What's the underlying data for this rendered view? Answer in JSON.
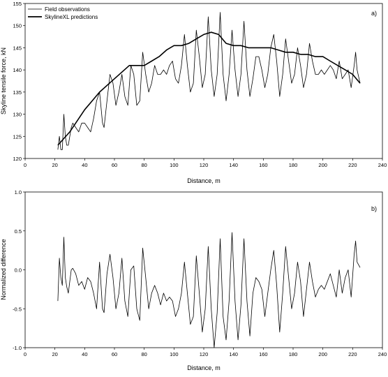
{
  "chart_data": [
    {
      "type": "line",
      "panel_label": "a)",
      "xlabel": "Distance, m",
      "ylabel": "Skyline tensile force, kN",
      "xlim": [
        0,
        240
      ],
      "ylim": [
        120,
        155
      ],
      "xticks": [
        0,
        20,
        40,
        60,
        80,
        100,
        120,
        140,
        160,
        180,
        200,
        220,
        240
      ],
      "yticks": [
        120,
        125,
        130,
        135,
        140,
        145,
        150,
        155
      ],
      "grid": false,
      "legend_position": "top-left",
      "series": [
        {
          "name": "Field observations",
          "style": "thin",
          "x": [
            22,
            23,
            24,
            25,
            26,
            27,
            28,
            29,
            30,
            31,
            32,
            34,
            36,
            38,
            40,
            42,
            44,
            46,
            48,
            50,
            52,
            53,
            55,
            57,
            59,
            61,
            63,
            65,
            67,
            69,
            71,
            73,
            75,
            77,
            79,
            81,
            83,
            85,
            87,
            89,
            91,
            93,
            95,
            97,
            99,
            101,
            103,
            105,
            107,
            109,
            111,
            113,
            115,
            117,
            119,
            121,
            123,
            125,
            127,
            129,
            131,
            133,
            135,
            137,
            139,
            141,
            143,
            145,
            147,
            149,
            151,
            153,
            155,
            157,
            159,
            161,
            163,
            165,
            167,
            169,
            171,
            173,
            175,
            177,
            179,
            181,
            183,
            185,
            187,
            189,
            191,
            193,
            195,
            197,
            199,
            201,
            203,
            205,
            207,
            209,
            211,
            213,
            215,
            217,
            219,
            221,
            222,
            223,
            225
          ],
          "y": [
            122,
            125,
            122,
            122,
            130,
            125,
            123,
            123,
            125,
            127,
            128,
            127,
            126,
            128,
            128,
            127,
            126,
            129,
            133,
            135,
            128,
            127,
            133,
            139,
            137,
            132,
            135,
            139,
            134,
            132,
            141,
            139,
            132,
            133,
            144,
            139,
            135,
            137,
            141,
            139,
            139,
            140,
            139,
            141,
            142,
            138,
            137,
            141,
            148,
            141,
            135,
            137,
            149,
            143,
            136,
            139,
            152,
            140,
            134,
            139,
            153,
            139,
            133,
            139,
            149,
            140,
            134,
            139,
            151,
            140,
            134,
            138,
            143,
            143,
            140,
            136,
            139,
            145,
            148,
            142,
            134,
            139,
            147,
            142,
            137,
            139,
            145,
            141,
            136,
            139,
            146,
            142,
            139,
            139,
            140,
            139,
            140,
            141,
            140,
            138,
            142,
            138,
            139,
            140,
            136,
            141,
            144,
            140,
            137
          ]
        },
        {
          "name": "SkylineXL predictions",
          "style": "thick",
          "x": [
            22,
            30,
            40,
            50,
            60,
            70,
            75,
            80,
            85,
            90,
            95,
            100,
            105,
            110,
            115,
            120,
            125,
            130,
            135,
            140,
            145,
            150,
            155,
            160,
            165,
            170,
            175,
            180,
            185,
            190,
            195,
            200,
            205,
            210,
            215,
            220,
            225
          ],
          "y": [
            123,
            126,
            131,
            135,
            138,
            141,
            141,
            141,
            142,
            143,
            144.5,
            145.5,
            145.5,
            146,
            147,
            148,
            148.5,
            148,
            146,
            145.5,
            145.5,
            145,
            145,
            145,
            145,
            144.5,
            144,
            144,
            143.5,
            143.5,
            143,
            143,
            142,
            141,
            140,
            139,
            137
          ]
        }
      ]
    },
    {
      "type": "line",
      "panel_label": "b)",
      "xlabel": "Distance, m",
      "ylabel": "Normalized difference",
      "xlim": [
        0,
        240
      ],
      "ylim": [
        -1.0,
        1.0
      ],
      "xticks": [
        0,
        20,
        40,
        60,
        80,
        100,
        120,
        140,
        160,
        180,
        200,
        220,
        240
      ],
      "yticks": [
        -1.0,
        -0.5,
        0.0,
        0.5,
        1.0
      ],
      "grid": false,
      "series": [
        {
          "x": [
            22,
            23,
            24,
            25,
            26,
            27,
            28,
            29,
            30,
            31,
            32,
            34,
            36,
            38,
            40,
            42,
            44,
            46,
            48,
            50,
            52,
            53,
            55,
            57,
            59,
            61,
            63,
            65,
            67,
            69,
            71,
            73,
            75,
            77,
            79,
            81,
            83,
            85,
            87,
            89,
            91,
            93,
            95,
            97,
            99,
            101,
            103,
            105,
            107,
            109,
            111,
            113,
            115,
            117,
            119,
            121,
            123,
            125,
            127,
            129,
            131,
            133,
            135,
            137,
            139,
            141,
            143,
            145,
            147,
            149,
            151,
            153,
            155,
            157,
            159,
            161,
            163,
            165,
            167,
            169,
            171,
            173,
            175,
            177,
            179,
            181,
            183,
            185,
            187,
            189,
            191,
            193,
            195,
            197,
            199,
            201,
            203,
            205,
            207,
            209,
            211,
            213,
            215,
            217,
            219,
            221,
            222,
            223,
            225
          ],
          "y": [
            -0.4,
            0.15,
            -0.1,
            -0.2,
            0.42,
            -0.1,
            -0.22,
            -0.3,
            -0.15,
            0.0,
            0.02,
            -0.05,
            -0.2,
            -0.15,
            -0.25,
            -0.1,
            -0.15,
            -0.3,
            -0.5,
            0.1,
            -0.5,
            -0.55,
            -0.05,
            0.2,
            -0.1,
            -0.5,
            -0.3,
            0.15,
            -0.4,
            -0.6,
            0.0,
            0.05,
            -0.5,
            -0.65,
            0.28,
            -0.1,
            -0.5,
            -0.3,
            -0.2,
            -0.3,
            -0.45,
            -0.3,
            -0.4,
            -0.35,
            -0.4,
            -0.6,
            -0.5,
            -0.3,
            0.1,
            -0.3,
            -0.7,
            -0.6,
            0.18,
            -0.3,
            -0.8,
            -0.5,
            0.3,
            -0.5,
            -1.0,
            -0.55,
            0.4,
            -0.6,
            -0.9,
            -0.4,
            0.48,
            -0.4,
            -0.9,
            -0.45,
            0.4,
            -0.4,
            -0.85,
            -0.3,
            -0.1,
            -0.15,
            -0.25,
            -0.6,
            -0.3,
            0.0,
            0.25,
            -0.2,
            -0.8,
            -0.3,
            0.3,
            -0.1,
            -0.5,
            -0.3,
            0.1,
            -0.15,
            -0.6,
            -0.25,
            0.1,
            -0.15,
            -0.35,
            -0.25,
            -0.2,
            -0.25,
            -0.15,
            -0.05,
            -0.2,
            -0.35,
            0.0,
            -0.3,
            -0.1,
            0.0,
            -0.35,
            0.2,
            0.37,
            0.1,
            0.03
          ]
        }
      ]
    }
  ]
}
